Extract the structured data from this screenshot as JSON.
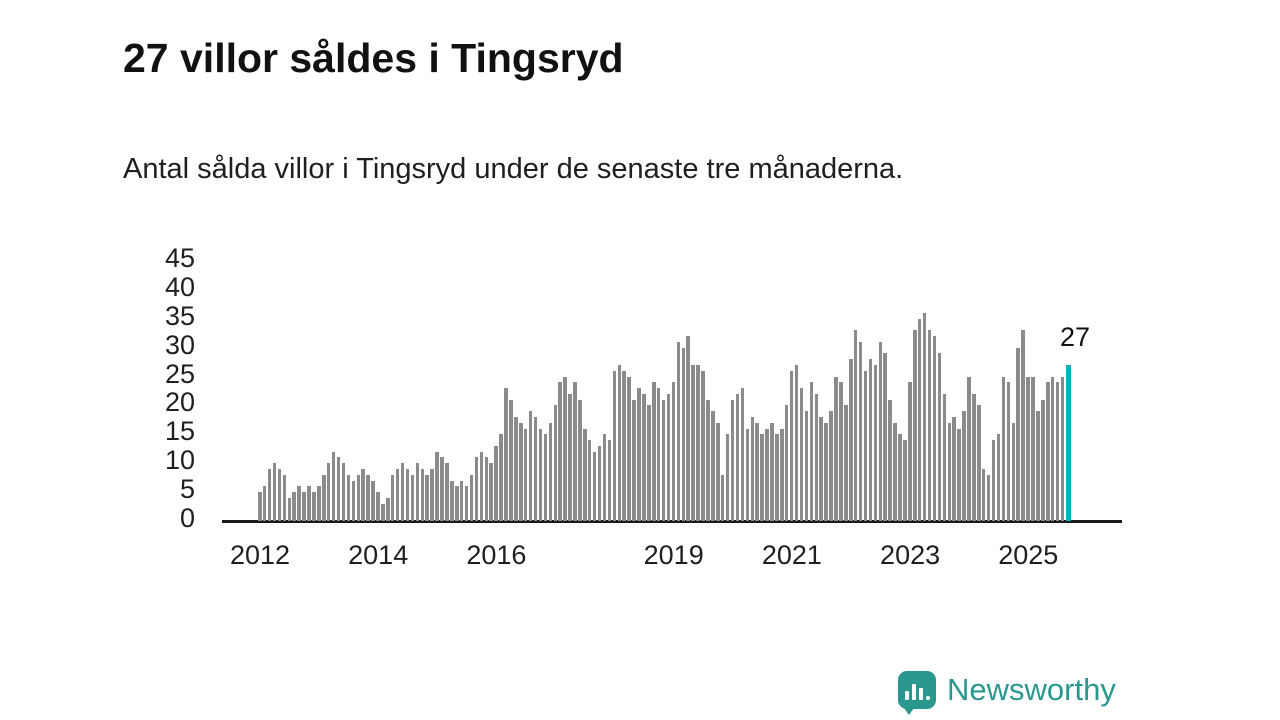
{
  "page": {
    "title": "27 villor såldes i Tingsryd",
    "subtitle": "Antal sålda villor i Tingsryd under de senaste tre månaderna."
  },
  "annotation": {
    "label": "27"
  },
  "brand": {
    "name": "Newsworthy",
    "icon": "bar-chart-speech-bubble-icon",
    "color": "#2a988e"
  },
  "colors": {
    "bar": "#8b8b8b",
    "highlight": "#00b4bd",
    "axis": "#1a1a1a",
    "text": "#1f1f1f"
  },
  "chart_data": {
    "type": "bar",
    "title": "27 villor såldes i Tingsryd",
    "subtitle": "Antal sålda villor i Tingsryd under de senaste tre månaderna.",
    "xlabel": "",
    "ylabel": "",
    "ylim": [
      0,
      45
    ],
    "yticks": [
      0,
      5,
      10,
      15,
      20,
      25,
      30,
      35,
      40,
      45
    ],
    "grid": false,
    "legend": "none",
    "x_unit": "month",
    "xticks": [
      {
        "label": "2012",
        "index": 0
      },
      {
        "label": "2014",
        "index": 24
      },
      {
        "label": "2016",
        "index": 48
      },
      {
        "label": "2019",
        "index": 84
      },
      {
        "label": "2021",
        "index": 108
      },
      {
        "label": "2023",
        "index": 132
      },
      {
        "label": "2025",
        "index": 156
      }
    ],
    "values": [
      5,
      6,
      9,
      10,
      9,
      8,
      4,
      5,
      6,
      5,
      6,
      5,
      6,
      8,
      10,
      12,
      11,
      10,
      8,
      7,
      8,
      9,
      8,
      7,
      5,
      3,
      4,
      8,
      9,
      10,
      9,
      8,
      10,
      9,
      8,
      9,
      12,
      11,
      10,
      7,
      6,
      7,
      6,
      8,
      11,
      12,
      11,
      10,
      13,
      15,
      23,
      21,
      18,
      17,
      16,
      19,
      18,
      16,
      15,
      17,
      20,
      24,
      25,
      22,
      24,
      21,
      16,
      14,
      12,
      13,
      15,
      14,
      26,
      27,
      26,
      25,
      21,
      23,
      22,
      20,
      24,
      23,
      21,
      22,
      24,
      31,
      30,
      32,
      27,
      27,
      26,
      21,
      19,
      17,
      8,
      15,
      21,
      22,
      23,
      16,
      18,
      17,
      15,
      16,
      17,
      15,
      16,
      20,
      26,
      27,
      23,
      19,
      24,
      22,
      18,
      17,
      19,
      25,
      24,
      20,
      28,
      33,
      31,
      26,
      28,
      27,
      31,
      29,
      21,
      17,
      15,
      14,
      24,
      33,
      35,
      36,
      33,
      32,
      29,
      22,
      17,
      18,
      16,
      19,
      25,
      22,
      20,
      9,
      8,
      14,
      15,
      25,
      24,
      17,
      30,
      33,
      25,
      25,
      19,
      21,
      24,
      25,
      24,
      25,
      27
    ],
    "highlight_last": true,
    "highlight_value": 27,
    "highlight_color": "#00b4bd",
    "annotation_label": "27"
  }
}
